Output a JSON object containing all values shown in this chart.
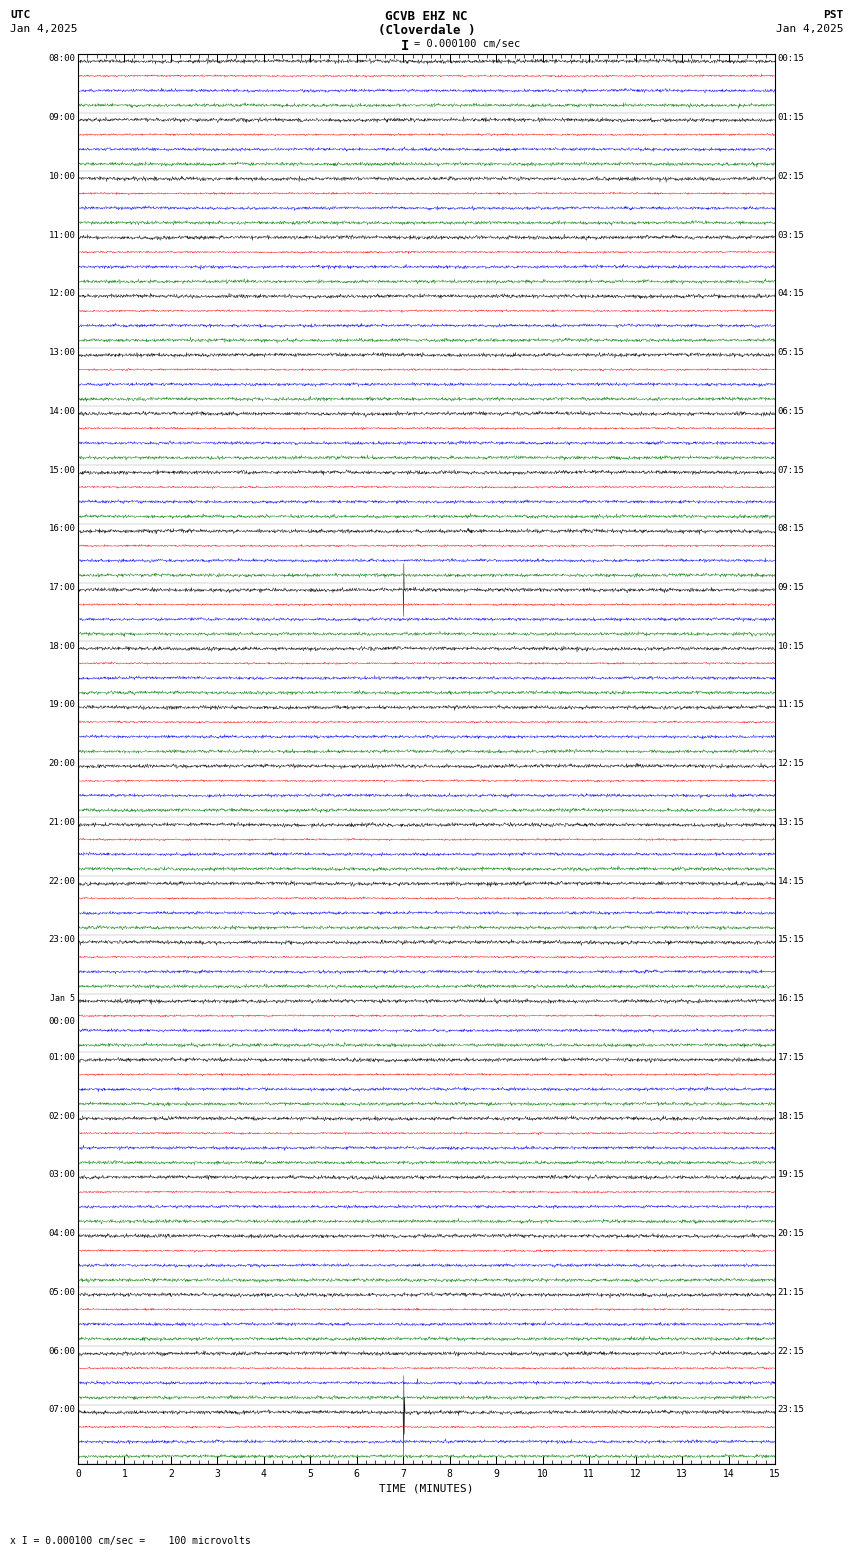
{
  "title_line1": "GCVB EHZ NC",
  "title_line2": "(Cloverdale )",
  "scale_text": "= 0.000100 cm/sec",
  "utc_label": "UTC",
  "utc_date": "Jan 4,2025",
  "pst_label": "PST",
  "pst_date": "Jan 4,2025",
  "xlabel": "TIME (MINUTES)",
  "footer_text": "x I = 0.000100 cm/sec =    100 microvolts",
  "background_color": "#ffffff",
  "trace_colors": [
    "black",
    "red",
    "blue",
    "green"
  ],
  "num_rows": 24,
  "traces_per_row": 4,
  "minutes_per_row": 15,
  "left_labels_utc": [
    "08:00",
    "09:00",
    "10:00",
    "11:00",
    "12:00",
    "13:00",
    "14:00",
    "15:00",
    "16:00",
    "17:00",
    "18:00",
    "19:00",
    "20:00",
    "21:00",
    "22:00",
    "23:00",
    "Jan 5\n00:00",
    "01:00",
    "02:00",
    "03:00",
    "04:00",
    "05:00",
    "06:00",
    "07:00"
  ],
  "right_labels_pst": [
    "00:15",
    "01:15",
    "02:15",
    "03:15",
    "04:15",
    "05:15",
    "06:15",
    "07:15",
    "08:15",
    "09:15",
    "10:15",
    "11:15",
    "12:15",
    "13:15",
    "14:15",
    "15:15",
    "16:15",
    "17:15",
    "18:15",
    "19:15",
    "20:15",
    "21:15",
    "22:15",
    "23:15"
  ],
  "noise_amplitude": 0.06,
  "spike_row": 9,
  "spike_minute": 7.0,
  "spike_trace": 0,
  "spike_row2": 22,
  "spike_minute2": 7.3,
  "spike_trace2": 2,
  "spike_row3": 23,
  "spike_minute3": 7.0,
  "spike_trace3": 0
}
